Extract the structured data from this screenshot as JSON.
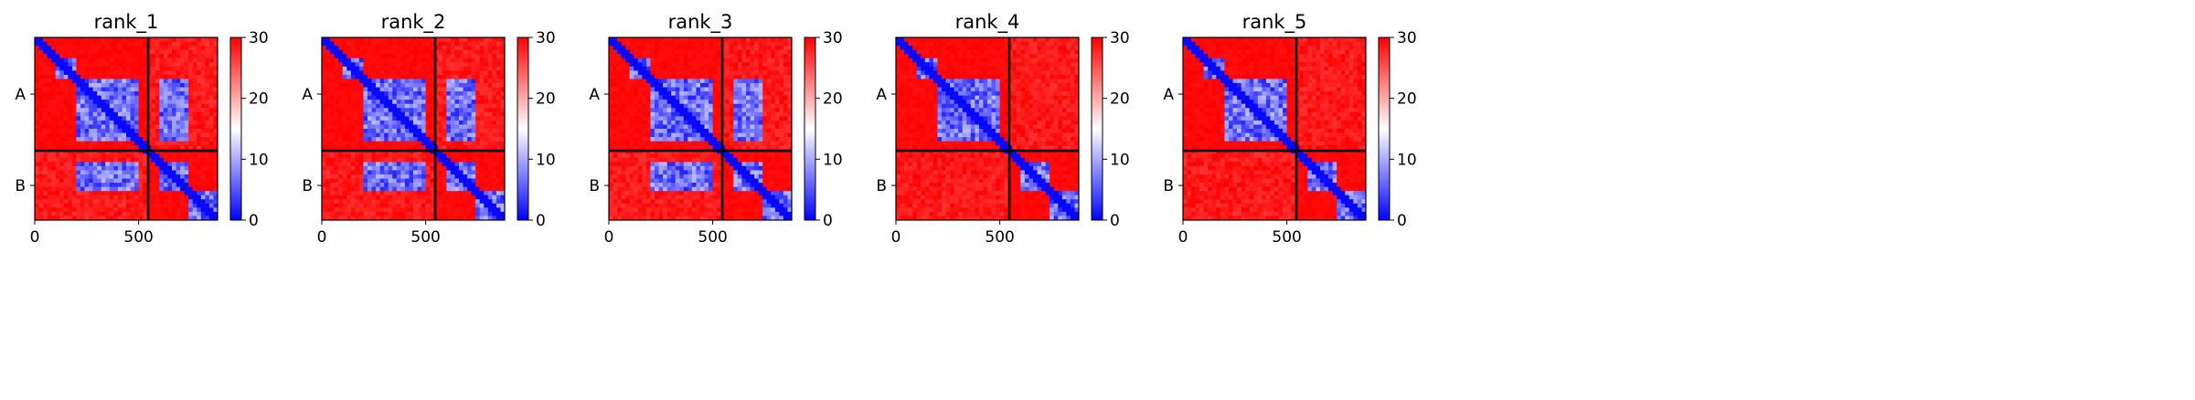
{
  "figure": {
    "colorbar": {
      "min": 0,
      "max": 30,
      "ticks": [
        0,
        10,
        20,
        30
      ],
      "tick_labels": [
        "0",
        "10",
        "20",
        "30"
      ],
      "colors": {
        "low": "#0000ff",
        "mid": "#ffffff",
        "high": "#ff0000"
      }
    },
    "colors": {
      "axis": "#000000",
      "boundary": "#000000"
    }
  },
  "chart_data": [
    {
      "type": "heatmap",
      "title": "rank_1",
      "xlim": [
        0,
        880
      ],
      "ylim": [
        880,
        0
      ],
      "x_ticks": [
        0,
        500
      ],
      "x_tick_labels": [
        "0",
        "500"
      ],
      "chain_boundary": 546,
      "chain_labels": [
        "A",
        "B"
      ],
      "chain_label_positions": [
        273,
        713
      ],
      "low_error_blocks": [
        [
          0,
          25,
          0,
          25
        ],
        [
          100,
          200,
          100,
          200
        ],
        [
          200,
          500,
          200,
          500
        ],
        [
          600,
          740,
          600,
          740
        ],
        [
          740,
          880,
          740,
          880
        ]
      ],
      "interchain_low_error": true
    },
    {
      "type": "heatmap",
      "title": "rank_2",
      "xlim": [
        0,
        880
      ],
      "ylim": [
        880,
        0
      ],
      "x_ticks": [
        0,
        500
      ],
      "x_tick_labels": [
        "0",
        "500"
      ],
      "chain_boundary": 546,
      "chain_labels": [
        "A",
        "B"
      ],
      "chain_label_positions": [
        273,
        713
      ],
      "low_error_blocks": [
        [
          0,
          25,
          0,
          25
        ],
        [
          100,
          200,
          100,
          200
        ],
        [
          200,
          500,
          200,
          500
        ],
        [
          600,
          740,
          600,
          740
        ],
        [
          740,
          880,
          740,
          880
        ]
      ],
      "interchain_low_error": true
    },
    {
      "type": "heatmap",
      "title": "rank_3",
      "xlim": [
        0,
        880
      ],
      "ylim": [
        880,
        0
      ],
      "x_ticks": [
        0,
        500
      ],
      "x_tick_labels": [
        "0",
        "500"
      ],
      "chain_boundary": 546,
      "chain_labels": [
        "A",
        "B"
      ],
      "chain_label_positions": [
        273,
        713
      ],
      "low_error_blocks": [
        [
          0,
          25,
          0,
          25
        ],
        [
          100,
          200,
          100,
          200
        ],
        [
          200,
          500,
          200,
          500
        ],
        [
          600,
          740,
          600,
          740
        ],
        [
          740,
          880,
          740,
          880
        ]
      ],
      "interchain_low_error": true
    },
    {
      "type": "heatmap",
      "title": "rank_4",
      "xlim": [
        0,
        880
      ],
      "ylim": [
        880,
        0
      ],
      "x_ticks": [
        0,
        500
      ],
      "x_tick_labels": [
        "0",
        "500"
      ],
      "chain_boundary": 546,
      "chain_labels": [
        "A",
        "B"
      ],
      "chain_label_positions": [
        273,
        713
      ],
      "low_error_blocks": [
        [
          0,
          25,
          0,
          25
        ],
        [
          100,
          200,
          100,
          200
        ],
        [
          200,
          500,
          200,
          500
        ],
        [
          600,
          740,
          600,
          740
        ],
        [
          740,
          880,
          740,
          880
        ]
      ],
      "interchain_low_error": false
    },
    {
      "type": "heatmap",
      "title": "rank_5",
      "xlim": [
        0,
        880
      ],
      "ylim": [
        880,
        0
      ],
      "x_ticks": [
        0,
        500
      ],
      "x_tick_labels": [
        "0",
        "500"
      ],
      "chain_boundary": 546,
      "chain_labels": [
        "A",
        "B"
      ],
      "chain_label_positions": [
        273,
        713
      ],
      "low_error_blocks": [
        [
          0,
          25,
          0,
          25
        ],
        [
          100,
          200,
          100,
          200
        ],
        [
          200,
          500,
          200,
          500
        ],
        [
          600,
          740,
          600,
          740
        ],
        [
          740,
          880,
          740,
          880
        ]
      ],
      "interchain_low_error": false
    }
  ]
}
